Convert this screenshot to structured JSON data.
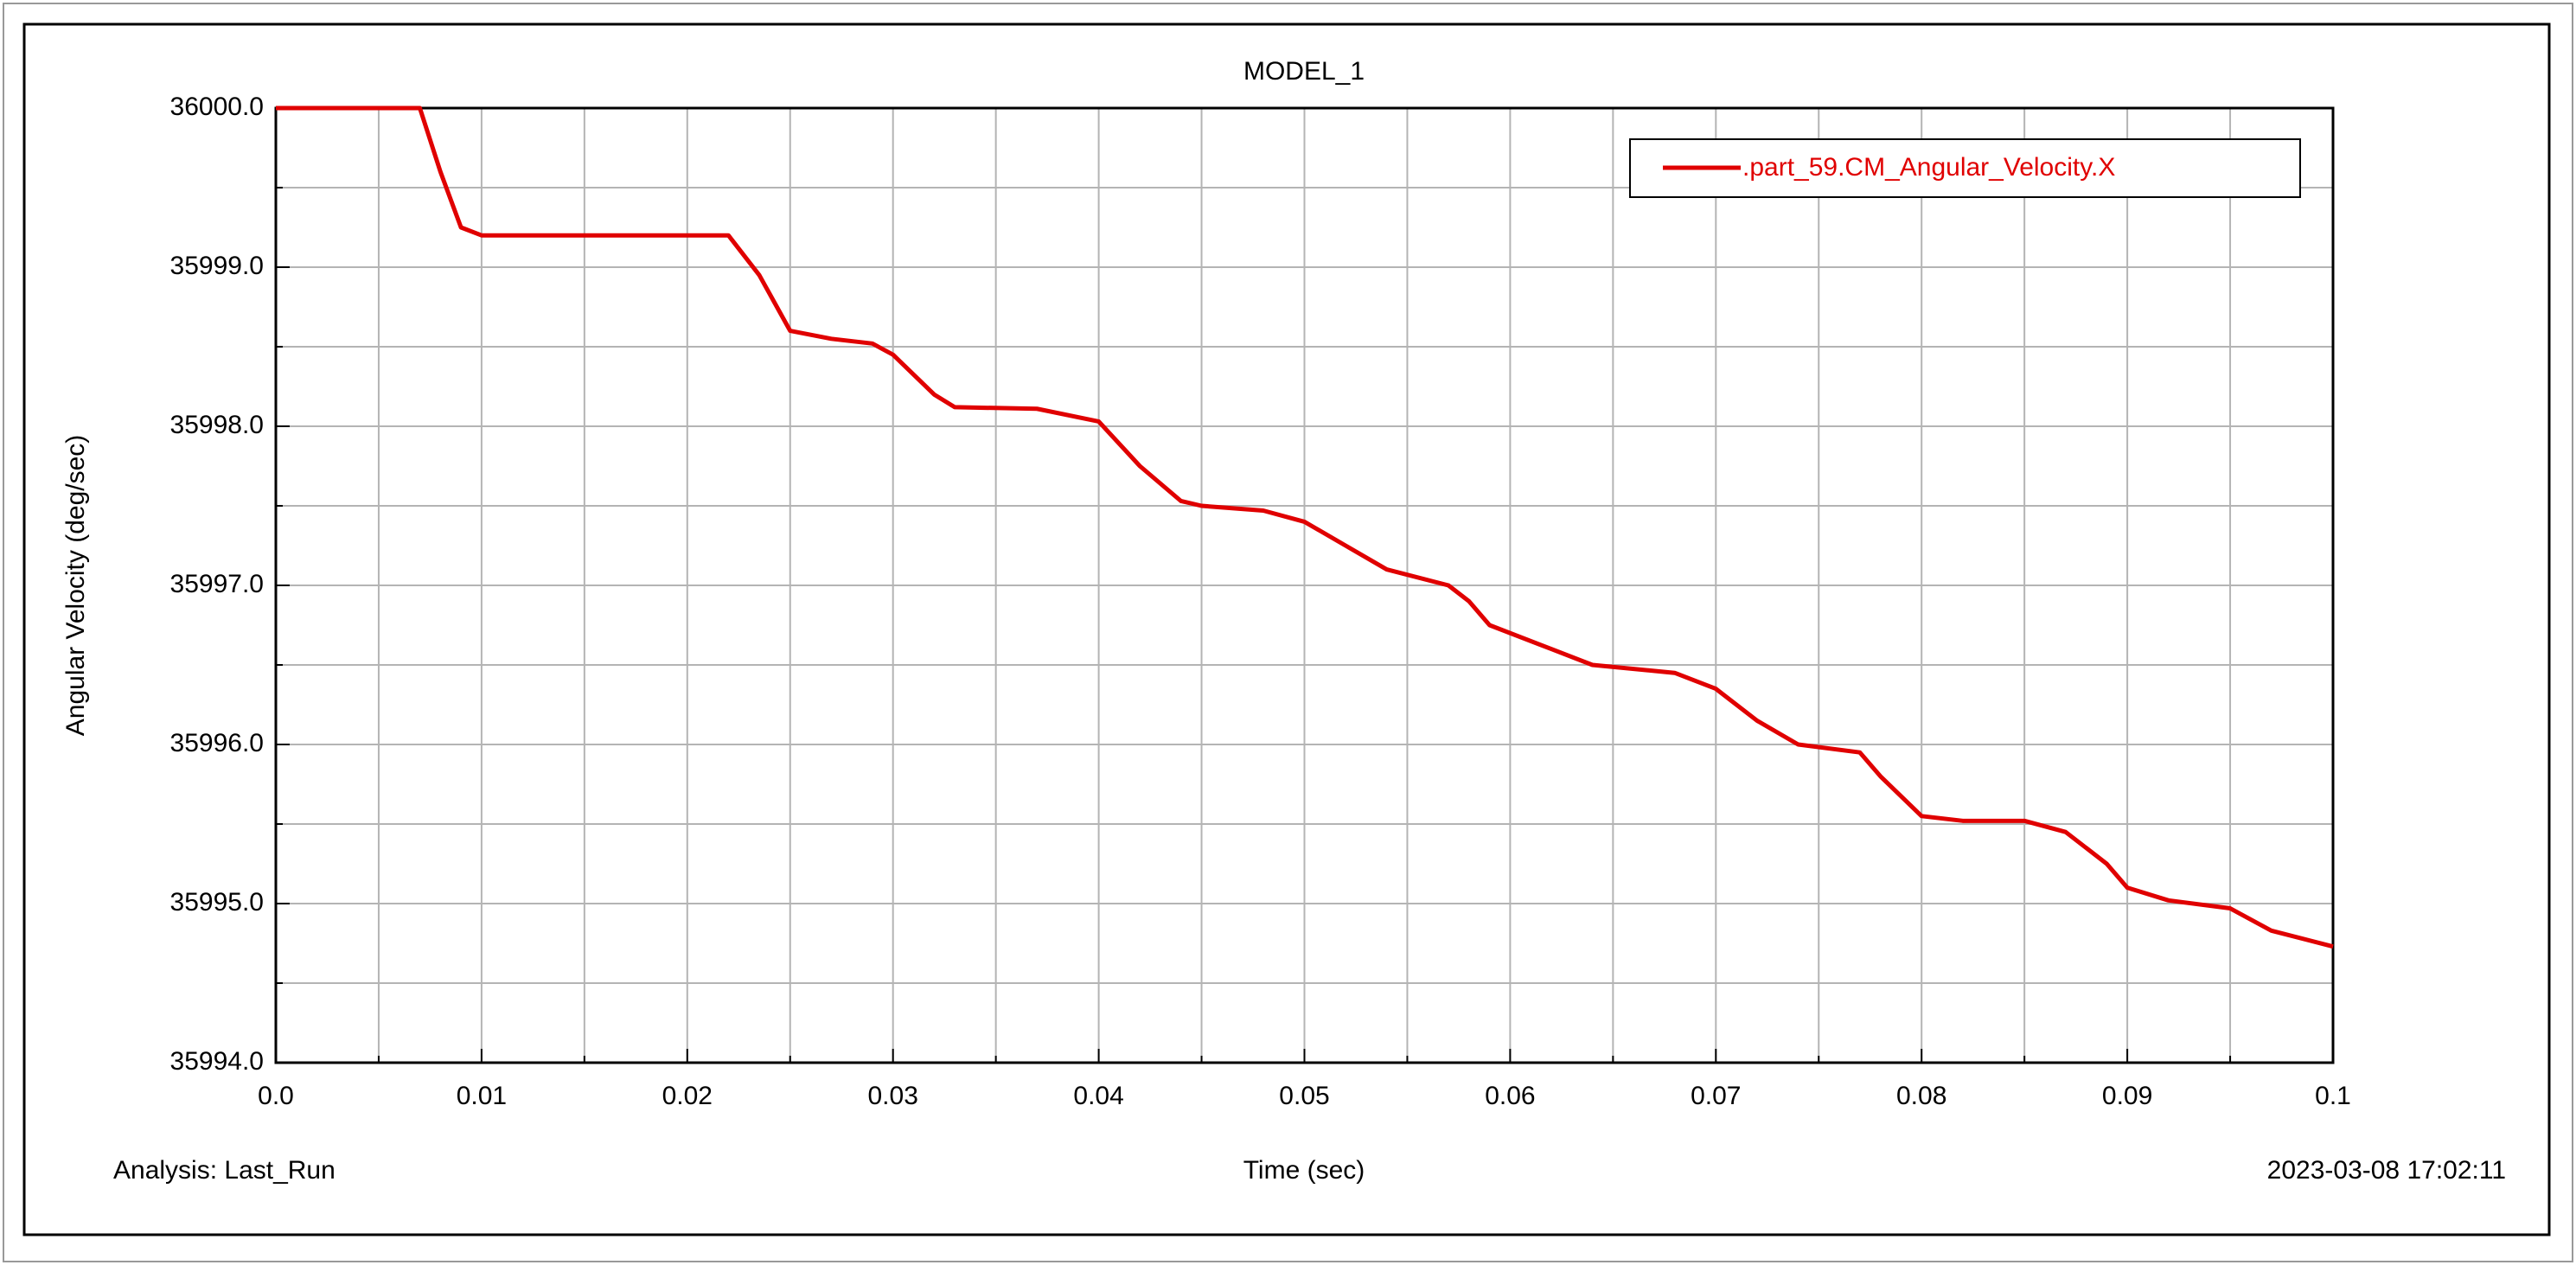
{
  "chart_data": {
    "type": "line",
    "title": "MODEL_1",
    "y_label": "Angular Velocity (deg/sec)",
    "x_label": "Time (sec)",
    "analysis": "Analysis:  Last_Run",
    "timestamp": "2023-03-08 17:02:11",
    "x": [
      0,
      0.007,
      0.008,
      0.009,
      0.01,
      0.022,
      0.0235,
      0.025,
      0.027,
      0.029,
      0.03,
      0.032,
      0.033,
      0.037,
      0.04,
      0.042,
      0.044,
      0.045,
      0.048,
      0.05,
      0.052,
      0.054,
      0.057,
      0.058,
      0.059,
      0.062,
      0.064,
      0.068,
      0.07,
      0.072,
      0.074,
      0.077,
      0.078,
      0.08,
      0.082,
      0.085,
      0.087,
      0.089,
      0.09,
      0.092,
      0.095,
      0.097,
      0.1
    ],
    "series": [
      {
        "name": ".part_59.CM_Angular_Velocity.X",
        "color": "#e00000",
        "values": [
          36000,
          36000,
          35999.6,
          35999.25,
          35999.2,
          35999.2,
          35998.95,
          35998.6,
          35998.55,
          35998.52,
          35998.45,
          35998.2,
          35998.12,
          35998.11,
          35998.03,
          35997.75,
          35997.53,
          35997.5,
          35997.47,
          35997.4,
          35997.25,
          35997.1,
          35997.0,
          35996.9,
          35996.75,
          35996.6,
          35996.5,
          35996.45,
          35996.35,
          35996.15,
          35996.0,
          35995.95,
          35995.8,
          35995.55,
          35995.52,
          35995.52,
          35995.45,
          35995.25,
          35995.1,
          35995.02,
          35994.97,
          35994.83,
          35994.73
        ]
      }
    ],
    "xlim": [
      0,
      0.1
    ],
    "ylim": [
      35994,
      36000
    ],
    "xticks": [
      {
        "value": 0,
        "label": "0.0"
      },
      0.01,
      0.02,
      0.03,
      0.04,
      0.05,
      0.06,
      0.07,
      0.08,
      0.09,
      0.1
    ],
    "yticks": [
      {
        "value": 35994,
        "label": "35994.0"
      },
      {
        "value": 35995,
        "label": "35995.0"
      },
      {
        "value": 35996,
        "label": "35996.0"
      },
      {
        "value": 35997,
        "label": "35997.0"
      },
      {
        "value": 35998,
        "label": "35998.0"
      },
      {
        "value": 35999,
        "label": "35999.0"
      },
      {
        "value": 36000,
        "label": "36000.0"
      }
    ],
    "grid": true,
    "legend": "upper right"
  }
}
